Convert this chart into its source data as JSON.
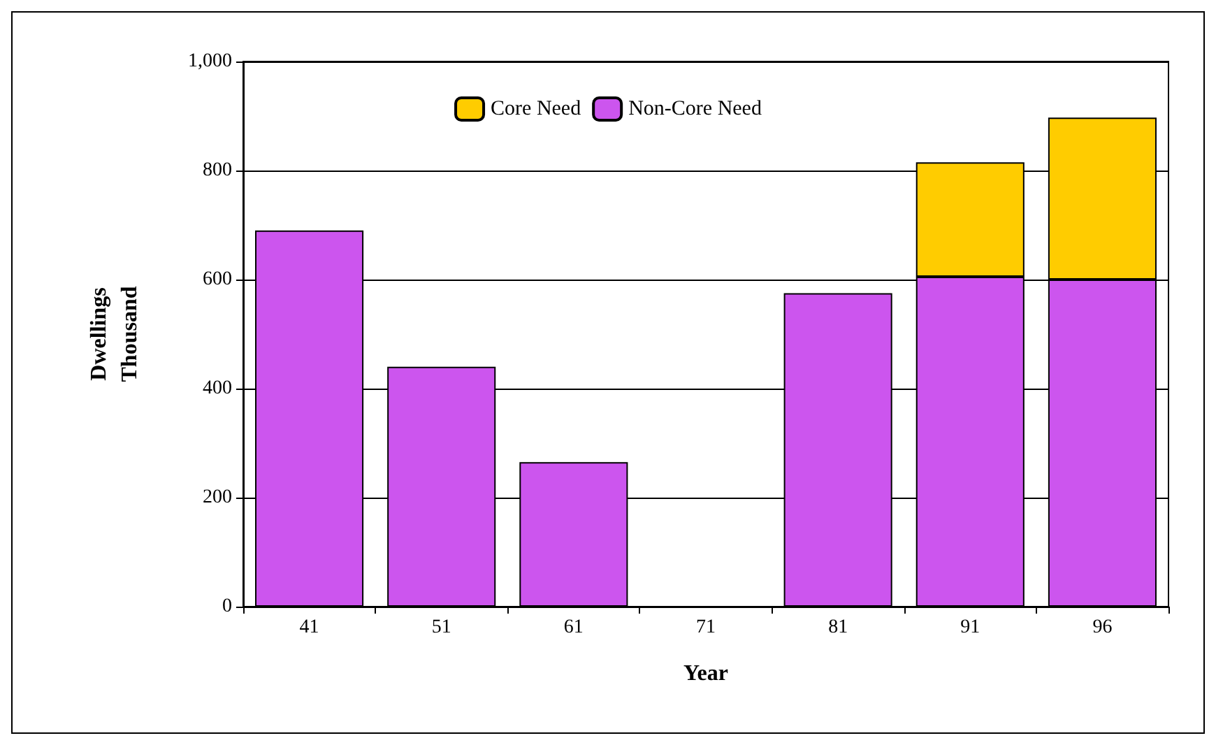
{
  "chart_data": {
    "type": "bar",
    "xlabel": "Year",
    "ylabel": "Dwellings\nThousand",
    "categories": [
      "41",
      "51",
      "61",
      "71",
      "81",
      "91",
      "96"
    ],
    "stacked": true,
    "series": [
      {
        "name": "Non-Core Need",
        "color": "#cc55ee",
        "values": [
          690,
          440,
          265,
          null,
          575,
          605,
          600
        ]
      },
      {
        "name": "Core Need",
        "color": "#ffcc00",
        "values": [
          null,
          null,
          null,
          null,
          null,
          210,
          297
        ]
      }
    ],
    "ylim": [
      0,
      1000
    ],
    "yticks": [
      0,
      200,
      400,
      600,
      800,
      {
        "value": 1000,
        "label": "1,000"
      }
    ],
    "grid": "y",
    "legend": "top"
  }
}
